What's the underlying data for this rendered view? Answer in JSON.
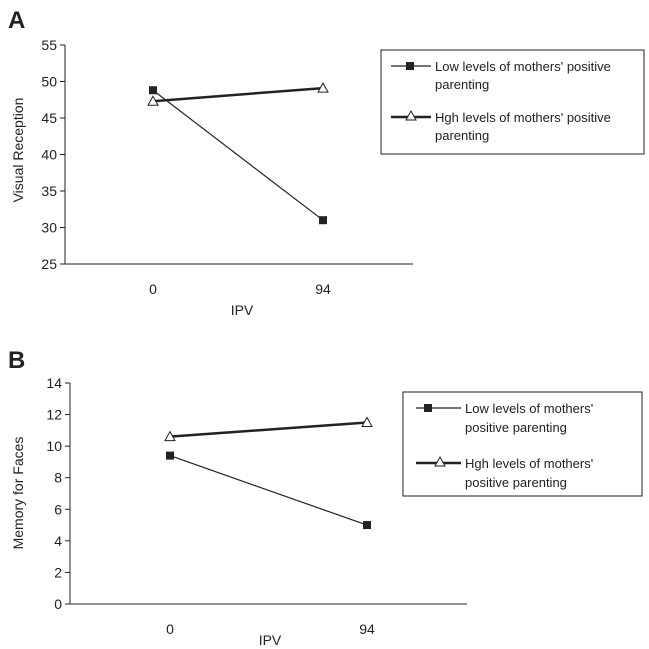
{
  "chart_data": [
    {
      "type": "line",
      "panel_label": "A",
      "xlabel": "IPV",
      "ylabel": "Visual Reception",
      "categories": [
        "0",
        "94"
      ],
      "ylim": [
        25,
        55
      ],
      "yticks": [
        "25",
        "30",
        "35",
        "40",
        "45",
        "50",
        "55"
      ],
      "grid": false,
      "legend_position": "right",
      "series": [
        {
          "name": "Low levels of mothers' positive parenting",
          "values": [
            48.8,
            31.0
          ],
          "marker": "square",
          "legend_lines": [
            "Low levels of mothers' positive",
            "parenting"
          ]
        },
        {
          "name": "High levels of mothers' positive parenting",
          "values": [
            47.3,
            49.1
          ],
          "marker": "triangle",
          "legend_lines": [
            "Hgh levels of mothers' positive",
            "parenting"
          ]
        }
      ]
    },
    {
      "type": "line",
      "panel_label": "B",
      "xlabel": "IPV",
      "ylabel": "Memory for Faces",
      "categories": [
        "0",
        "94"
      ],
      "ylim": [
        0,
        14
      ],
      "yticks": [
        "0",
        "2",
        "4",
        "6",
        "8",
        "10",
        "12",
        "14"
      ],
      "grid": false,
      "legend_position": "right",
      "series": [
        {
          "name": "Low levels of mothers' positive parenting",
          "values": [
            9.4,
            5.0
          ],
          "marker": "square",
          "legend_lines": [
            "Low levels of mothers'",
            "positive parenting"
          ]
        },
        {
          "name": "High levels of mothers' positive parenting",
          "values": [
            10.6,
            11.5
          ],
          "marker": "triangle",
          "legend_lines": [
            "Hgh levels of mothers'",
            "positive parenting"
          ]
        }
      ]
    }
  ]
}
